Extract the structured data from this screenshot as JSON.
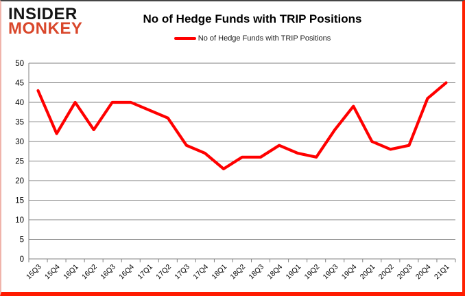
{
  "logo": {
    "line1": "INSIDER",
    "line2": "MONKEY"
  },
  "title": "No of Hedge Funds with TRIP Positions",
  "legend": {
    "label": "No of Hedge Funds with TRIP Positions",
    "swatch_color": "#FF0000"
  },
  "colors": {
    "line": "#FF0000",
    "grid": "#808080",
    "axis": "#808080",
    "text": "#000000",
    "logo_black": "#151515",
    "logo_red": "#D9472B",
    "border_glow": "#FF1A00"
  },
  "chart_data": {
    "type": "line",
    "title": "No of Hedge Funds with TRIP Positions",
    "xlabel": "",
    "ylabel": "",
    "ylim": [
      0,
      50
    ],
    "ytick_step": 5,
    "grid": "horizontal",
    "legend_position": "top-center",
    "categories": [
      "15Q3",
      "15Q4",
      "16Q1",
      "16Q2",
      "16Q3",
      "16Q4",
      "17Q1",
      "17Q2",
      "17Q3",
      "17Q4",
      "18Q1",
      "18Q2",
      "18Q3",
      "18Q4",
      "19Q1",
      "19Q2",
      "19Q3",
      "19Q4",
      "20Q1",
      "20Q2",
      "20Q3",
      "20Q4",
      "21Q1"
    ],
    "series": [
      {
        "name": "No of Hedge Funds with TRIP Positions",
        "values": [
          43,
          32,
          40,
          33,
          40,
          40,
          38,
          36,
          29,
          27,
          23,
          26,
          26,
          29,
          27,
          26,
          33,
          39,
          30,
          28,
          29,
          41,
          45
        ]
      }
    ]
  }
}
